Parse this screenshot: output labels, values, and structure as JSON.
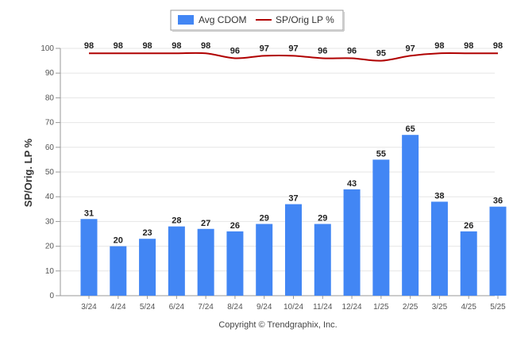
{
  "chart_data": {
    "type": "bar",
    "categories": [
      "3/24",
      "4/24",
      "5/24",
      "6/24",
      "7/24",
      "8/24",
      "9/24",
      "10/24",
      "11/24",
      "12/24",
      "1/25",
      "2/25",
      "3/25",
      "4/25",
      "5/25"
    ],
    "series": [
      {
        "name": "Avg CDOM",
        "type": "bar",
        "color": "#4286f4",
        "values": [
          31,
          20,
          23,
          28,
          27,
          26,
          29,
          37,
          29,
          43,
          55,
          65,
          38,
          26,
          36
        ]
      },
      {
        "name": "SP/Orig LP %",
        "type": "line",
        "color": "#b00000",
        "values": [
          98,
          98,
          98,
          98,
          98,
          96,
          97,
          97,
          96,
          96,
          95,
          97,
          98,
          98,
          98
        ]
      }
    ],
    "ylabel": "SP/Orig. LP %",
    "xlabel": "",
    "ylim": [
      0,
      100
    ],
    "yticks": [
      0,
      10,
      20,
      30,
      40,
      50,
      60,
      70,
      80,
      90,
      100
    ],
    "grid": true,
    "legend_position": "top-center"
  },
  "footer": {
    "copyright": "Copyright © Trendgraphix, Inc."
  }
}
